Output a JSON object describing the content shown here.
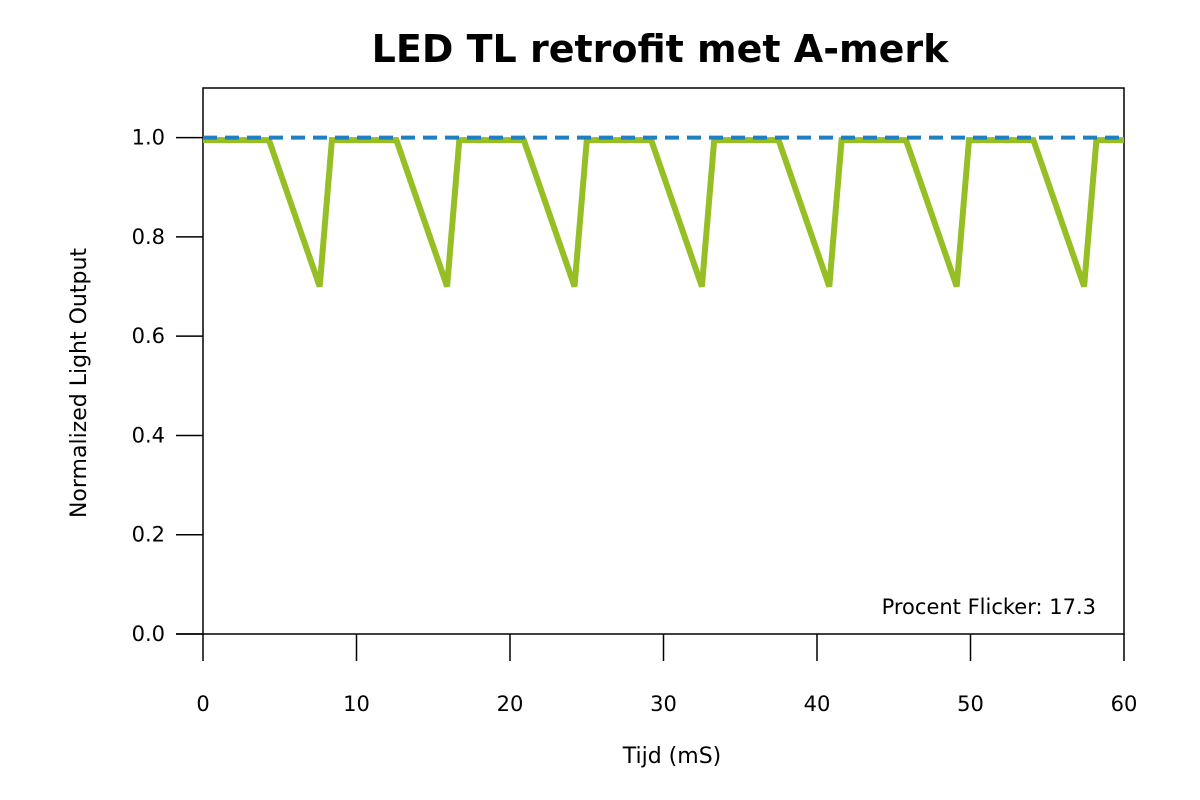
{
  "chart_data": {
    "type": "line",
    "title": "LED TL retrofit met A-merk",
    "xlabel": "Tijd (mS)",
    "ylabel": "Normalized Light Output",
    "xlim": [
      0,
      60
    ],
    "ylim": [
      0,
      1.1
    ],
    "x_ticks": [
      0,
      10,
      20,
      30,
      40,
      50,
      60
    ],
    "x_tick_labels": [
      "0",
      "10",
      "20",
      "30",
      "40",
      "50",
      "60"
    ],
    "y_ticks": [
      0.0,
      0.2,
      0.4,
      0.6,
      0.8,
      1.0
    ],
    "y_tick_labels": [
      "0.0",
      "0.2",
      "0.4",
      "0.6",
      "0.8",
      "1.0"
    ],
    "grid": false,
    "annotation": "Procent Flicker: 17.3",
    "series": [
      {
        "color": "#95bf24",
        "style": "solid",
        "x": [
          0,
          4.3,
          7.6,
          8.4,
          12.6,
          15.9,
          16.7,
          20.9,
          24.2,
          25.0,
          29.2,
          32.5,
          33.3,
          37.5,
          40.8,
          41.6,
          45.8,
          49.1,
          49.9,
          54.1,
          57.4,
          58.2,
          60
        ],
        "y": [
          0.995,
          0.995,
          0.7,
          0.995,
          0.995,
          0.7,
          0.995,
          0.995,
          0.7,
          0.995,
          0.995,
          0.7,
          0.995,
          0.995,
          0.7,
          0.995,
          0.995,
          0.7,
          0.995,
          0.995,
          0.7,
          0.995,
          0.995
        ]
      },
      {
        "color": "#1f7fc0",
        "style": "dashed",
        "x": [
          0,
          60
        ],
        "y": [
          1.0,
          1.0
        ]
      }
    ]
  }
}
